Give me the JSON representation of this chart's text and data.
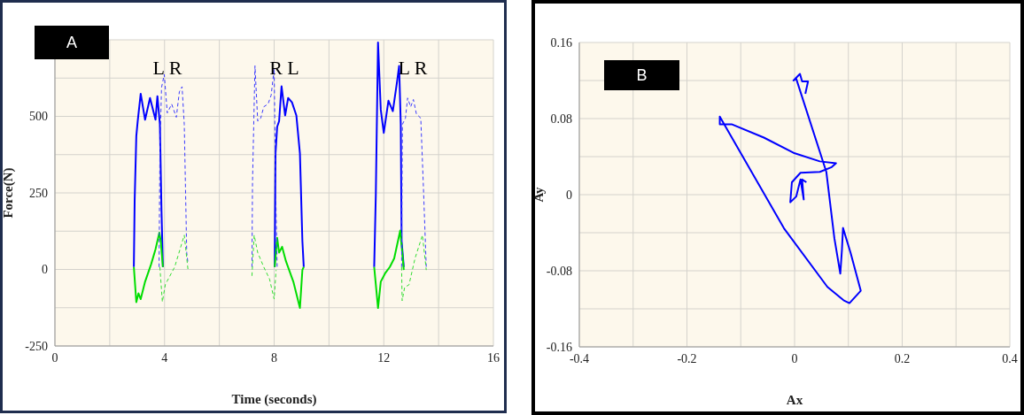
{
  "chart_data": [
    {
      "type": "line",
      "title": "A",
      "xlabel": "Time (seconds)",
      "ylabel": "Force(N)",
      "xlim": [
        0,
        16
      ],
      "ylim": [
        -250,
        750
      ],
      "xticks": [
        0,
        {
          "value": 2,
          "label": null
        },
        4,
        {
          "value": 6,
          "label": null
        },
        8,
        {
          "value": 10,
          "label": null
        },
        12,
        {
          "value": 14,
          "label": null
        },
        16
      ],
      "yticks": [
        -250,
        {
          "value": -125,
          "label": null
        },
        0,
        {
          "value": 125,
          "label": null
        },
        250,
        {
          "value": 375,
          "label": null
        },
        500,
        {
          "value": 625,
          "label": null
        },
        {
          "value": 750,
          "label": null
        }
      ],
      "grid": true,
      "series": [
        {
          "color": "#0000ff",
          "line_style": "solid",
          "x": [
            2.88,
            2.91,
            2.97,
            3.02,
            3.13,
            3.29,
            3.47,
            3.67,
            3.74,
            3.83,
            3.89,
            3.94,
            6,
            8.02,
            8.05,
            8.11,
            8.18,
            8.27,
            8.4,
            8.51,
            8.65,
            8.81,
            8.94,
            9.03,
            9.08,
            10.5,
            11.65,
            11.71,
            11.79,
            11.89,
            12.0,
            12.17,
            12.33,
            12.49,
            12.56,
            12.62,
            12.65,
            12.73
          ],
          "values": [
            8,
            227,
            436,
            484,
            574,
            489,
            560,
            489,
            566,
            474,
            189,
            8,
            null,
            8,
            380,
            466,
            484,
            598,
            503,
            560,
            546,
            503,
            379,
            93,
            8,
            null,
            8,
            246,
            741,
            522,
            446,
            551,
            517,
            617,
            665,
            474,
            93,
            8
          ]
        },
        {
          "color": "#00dd00",
          "line_style": "solid",
          "x": [
            2.88,
            2.97,
            3.05,
            3.13,
            3.29,
            3.51,
            3.67,
            3.81,
            3.86,
            3.94,
            6,
            8.02,
            8.11,
            8.18,
            8.29,
            8.43,
            8.7,
            8.94,
            9.03,
            9.08,
            10.5,
            11.65,
            11.79,
            11.89,
            12.06,
            12.22,
            12.38,
            12.6,
            12.73
          ],
          "values": [
            8,
            -107,
            -78,
            -97,
            -40,
            17,
            66,
            120,
            94,
            8,
            null,
            8,
            103,
            55,
            74,
            27,
            -40,
            -126,
            -2,
            8,
            null,
            8,
            -126,
            -40,
            -11,
            8,
            36,
            127,
            -2
          ]
        },
        {
          "color": "#3a3aff",
          "line_style": "dashed",
          "x": [
            3.8,
            3.83,
            3.89,
            3.99,
            4.1,
            4.26,
            4.43,
            4.54,
            4.64,
            4.72,
            4.81,
            4.86,
            6,
            7.19,
            7.21,
            7.3,
            7.4,
            7.51,
            7.62,
            7.78,
            7.89,
            8.0,
            8.05,
            8.11,
            10.5,
            12.65,
            12.68,
            12.79,
            12.87,
            12.98,
            13.08,
            13.19,
            13.35,
            13.44,
            13.55
          ],
          "values": [
            8,
            380,
            594,
            637,
            511,
            540,
            497,
            580,
            597,
            474,
            54,
            17,
            null,
            8,
            284,
            665,
            484,
            494,
            531,
            541,
            569,
            655,
            284,
            8,
            null,
            8,
            474,
            494,
            560,
            531,
            555,
            508,
            494,
            284,
            8
          ]
        },
        {
          "color": "#33dd33",
          "line_style": "dashed",
          "x": [
            3.83,
            3.92,
            4.03,
            4.37,
            4.72,
            4.86,
            6,
            7.19,
            7.27,
            7.4,
            7.62,
            7.83,
            8.0,
            8.07,
            10.5,
            12.65,
            12.67,
            12.76,
            12.92,
            13.14,
            13.41,
            13.55
          ],
          "values": [
            8,
            -106,
            -49,
            8,
            112,
            -4,
            null,
            -21,
            112,
            55,
            8,
            -31,
            -97,
            -2,
            null,
            8,
            -102,
            -59,
            -50,
            36,
            112,
            -2
          ]
        }
      ],
      "annotations": [
        "L R",
        "R L",
        "L R"
      ]
    },
    {
      "type": "line",
      "title": "B",
      "xlabel": "Ax",
      "ylabel": "Ay",
      "xlim": [
        -0.4,
        0.4
      ],
      "ylim": [
        -0.16,
        0.16
      ],
      "xticks": [
        -0.4,
        {
          "value": -0.3,
          "label": null
        },
        -0.2,
        {
          "value": -0.1,
          "label": null
        },
        0,
        {
          "value": 0.1,
          "label": null
        },
        0.2,
        {
          "value": 0.3,
          "label": null
        },
        0.4
      ],
      "yticks": [
        -0.16,
        {
          "value": -0.12,
          "label": null
        },
        -0.08,
        {
          "value": -0.04,
          "label": null
        },
        0,
        {
          "value": 0.04,
          "label": null
        },
        0.08,
        {
          "value": 0.12,
          "label": null
        },
        0.16
      ],
      "grid": true,
      "series": [
        {
          "color": "#0000ff",
          "line_style": "solid",
          "x": [
            0.022,
            0.014,
            0.017,
            0.011,
            0.003,
            -0.008,
            -0.005,
            0.011,
            0.047,
            0.069,
            0.077,
            0.047,
            -0.002,
            -0.057,
            -0.117,
            -0.139,
            -0.139,
            -0.019,
            0.061,
            0.091,
            0.102,
            0.123,
            0.104,
            0.09,
            0.088,
            0.085,
            0.074,
            0.059,
            0.003,
            -0.002,
            0.01,
            0.014,
            0.025,
            0.02
          ],
          "values": [
            0.013,
            0.016,
            -0.005,
            0.016,
            -0.002,
            -0.008,
            0.013,
            0.023,
            0.024,
            0.029,
            0.033,
            0.035,
            0.044,
            0.06,
            0.074,
            0.074,
            0.082,
            -0.036,
            -0.097,
            -0.111,
            -0.114,
            -0.101,
            -0.061,
            -0.035,
            -0.058,
            -0.083,
            -0.046,
            0.024,
            0.122,
            0.12,
            0.127,
            0.119,
            0.119,
            0.106
          ]
        }
      ]
    }
  ]
}
